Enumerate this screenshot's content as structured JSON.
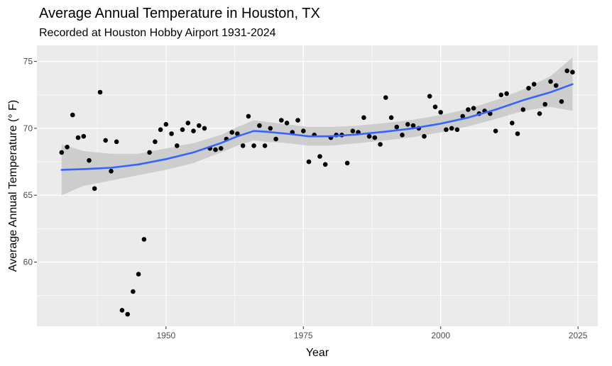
{
  "chart_data": {
    "type": "scatter",
    "title": "Average Annual Temperature in Houston, TX",
    "subtitle": "Recorded at Houston Hobby Airport 1931-2024",
    "xlabel": "Year",
    "ylabel": "Average Annual Temperature (° F)",
    "xlim": [
      1929.5,
      1926.5
    ],
    "ylim": [
      55.2,
      76.2
    ],
    "x_ticks": [
      1950,
      1975,
      2000,
      2025
    ],
    "y_ticks": [
      60,
      65,
      70,
      75
    ],
    "grid": true,
    "legend": "none",
    "colors": {
      "panel": "#EBEBEB",
      "grid": "#FFFFFF",
      "points": "#000000",
      "smooth_line": "#3366FF",
      "ribbon": "#C8C8C8"
    },
    "points": [
      {
        "x": 1931,
        "y": 68.2
      },
      {
        "x": 1932,
        "y": 68.6
      },
      {
        "x": 1933,
        "y": 71.0
      },
      {
        "x": 1934,
        "y": 69.3
      },
      {
        "x": 1935,
        "y": 69.4
      },
      {
        "x": 1936,
        "y": 67.6
      },
      {
        "x": 1937,
        "y": 65.5
      },
      {
        "x": 1938,
        "y": 72.7
      },
      {
        "x": 1939,
        "y": 69.1
      },
      {
        "x": 1940,
        "y": 66.8
      },
      {
        "x": 1941,
        "y": 69.0
      },
      {
        "x": 1942,
        "y": 56.4
      },
      {
        "x": 1943,
        "y": 56.1
      },
      {
        "x": 1944,
        "y": 57.8
      },
      {
        "x": 1945,
        "y": 59.1
      },
      {
        "x": 1946,
        "y": 61.7
      },
      {
        "x": 1947,
        "y": 68.2
      },
      {
        "x": 1948,
        "y": 69.0
      },
      {
        "x": 1949,
        "y": 69.9
      },
      {
        "x": 1950,
        "y": 70.3
      },
      {
        "x": 1951,
        "y": 69.6
      },
      {
        "x": 1952,
        "y": 68.7
      },
      {
        "x": 1953,
        "y": 69.9
      },
      {
        "x": 1954,
        "y": 70.4
      },
      {
        "x": 1955,
        "y": 69.8
      },
      {
        "x": 1956,
        "y": 70.2
      },
      {
        "x": 1957,
        "y": 70.0
      },
      {
        "x": 1958,
        "y": 68.5
      },
      {
        "x": 1959,
        "y": 68.4
      },
      {
        "x": 1960,
        "y": 68.5
      },
      {
        "x": 1961,
        "y": 69.2
      },
      {
        "x": 1962,
        "y": 69.7
      },
      {
        "x": 1963,
        "y": 69.6
      },
      {
        "x": 1964,
        "y": 68.7
      },
      {
        "x": 1965,
        "y": 70.9
      },
      {
        "x": 1966,
        "y": 68.7
      },
      {
        "x": 1967,
        "y": 70.2
      },
      {
        "x": 1968,
        "y": 68.7
      },
      {
        "x": 1969,
        "y": 70.0
      },
      {
        "x": 1970,
        "y": 69.2
      },
      {
        "x": 1971,
        "y": 70.6
      },
      {
        "x": 1972,
        "y": 70.4
      },
      {
        "x": 1973,
        "y": 69.7
      },
      {
        "x": 1974,
        "y": 70.6
      },
      {
        "x": 1975,
        "y": 69.8
      },
      {
        "x": 1976,
        "y": 67.5
      },
      {
        "x": 1977,
        "y": 69.5
      },
      {
        "x": 1978,
        "y": 67.9
      },
      {
        "x": 1979,
        "y": 67.3
      },
      {
        "x": 1980,
        "y": 69.3
      },
      {
        "x": 1981,
        "y": 69.5
      },
      {
        "x": 1982,
        "y": 69.5
      },
      {
        "x": 1983,
        "y": 67.4
      },
      {
        "x": 1984,
        "y": 69.8
      },
      {
        "x": 1985,
        "y": 69.7
      },
      {
        "x": 1986,
        "y": 70.8
      },
      {
        "x": 1987,
        "y": 69.4
      },
      {
        "x": 1988,
        "y": 69.3
      },
      {
        "x": 1989,
        "y": 68.8
      },
      {
        "x": 1990,
        "y": 72.3
      },
      {
        "x": 1991,
        "y": 70.8
      },
      {
        "x": 1992,
        "y": 70.1
      },
      {
        "x": 1993,
        "y": 69.5
      },
      {
        "x": 1994,
        "y": 70.3
      },
      {
        "x": 1995,
        "y": 70.2
      },
      {
        "x": 1996,
        "y": 70.0
      },
      {
        "x": 1997,
        "y": 69.4
      },
      {
        "x": 1998,
        "y": 72.4
      },
      {
        "x": 1999,
        "y": 71.6
      },
      {
        "x": 2000,
        "y": 71.2
      },
      {
        "x": 2001,
        "y": 69.9
      },
      {
        "x": 2002,
        "y": 70.0
      },
      {
        "x": 2003,
        "y": 69.9
      },
      {
        "x": 2004,
        "y": 70.9
      },
      {
        "x": 2005,
        "y": 71.4
      },
      {
        "x": 2006,
        "y": 71.5
      },
      {
        "x": 2007,
        "y": 71.1
      },
      {
        "x": 2008,
        "y": 71.3
      },
      {
        "x": 2009,
        "y": 71.1
      },
      {
        "x": 2010,
        "y": 69.8
      },
      {
        "x": 2011,
        "y": 72.5
      },
      {
        "x": 2012,
        "y": 72.6
      },
      {
        "x": 2013,
        "y": 70.4
      },
      {
        "x": 2014,
        "y": 69.6
      },
      {
        "x": 2015,
        "y": 71.4
      },
      {
        "x": 2016,
        "y": 73.0
      },
      {
        "x": 2017,
        "y": 73.3
      },
      {
        "x": 2018,
        "y": 71.1
      },
      {
        "x": 2019,
        "y": 71.8
      },
      {
        "x": 2020,
        "y": 73.5
      },
      {
        "x": 2021,
        "y": 73.2
      },
      {
        "x": 2022,
        "y": 72.0
      },
      {
        "x": 2023,
        "y": 74.3
      },
      {
        "x": 2024,
        "y": 74.2
      }
    ],
    "smooth": [
      {
        "x": 1931,
        "y": 66.9,
        "lo": 65.0,
        "hi": 68.8
      },
      {
        "x": 1935,
        "y": 66.95,
        "lo": 65.7,
        "hi": 68.3
      },
      {
        "x": 1940,
        "y": 67.05,
        "lo": 66.1,
        "hi": 68.1
      },
      {
        "x": 1945,
        "y": 67.3,
        "lo": 66.5,
        "hi": 68.1
      },
      {
        "x": 1950,
        "y": 67.7,
        "lo": 66.9,
        "hi": 68.5
      },
      {
        "x": 1955,
        "y": 68.2,
        "lo": 67.4,
        "hi": 68.9
      },
      {
        "x": 1960,
        "y": 68.9,
        "lo": 68.2,
        "hi": 69.5
      },
      {
        "x": 1963,
        "y": 69.4,
        "lo": 68.7,
        "hi": 70.1
      },
      {
        "x": 1966,
        "y": 69.8,
        "lo": 69.1,
        "hi": 70.6
      },
      {
        "x": 1968,
        "y": 69.75,
        "lo": 69.0,
        "hi": 70.5
      },
      {
        "x": 1972,
        "y": 69.6,
        "lo": 68.9,
        "hi": 70.3
      },
      {
        "x": 1976,
        "y": 69.4,
        "lo": 68.7,
        "hi": 70.1
      },
      {
        "x": 1980,
        "y": 69.4,
        "lo": 68.7,
        "hi": 70.1
      },
      {
        "x": 1985,
        "y": 69.55,
        "lo": 68.9,
        "hi": 70.2
      },
      {
        "x": 1990,
        "y": 69.75,
        "lo": 69.1,
        "hi": 70.4
      },
      {
        "x": 1995,
        "y": 70.0,
        "lo": 69.35,
        "hi": 70.65
      },
      {
        "x": 2000,
        "y": 70.35,
        "lo": 69.7,
        "hi": 71.0
      },
      {
        "x": 2005,
        "y": 70.8,
        "lo": 70.15,
        "hi": 71.45
      },
      {
        "x": 2010,
        "y": 71.4,
        "lo": 70.7,
        "hi": 72.1
      },
      {
        "x": 2015,
        "y": 72.1,
        "lo": 71.3,
        "hi": 72.9
      },
      {
        "x": 2020,
        "y": 72.7,
        "lo": 71.6,
        "hi": 73.9
      },
      {
        "x": 2024,
        "y": 73.3,
        "lo": 71.3,
        "hi": 75.3
      }
    ]
  }
}
